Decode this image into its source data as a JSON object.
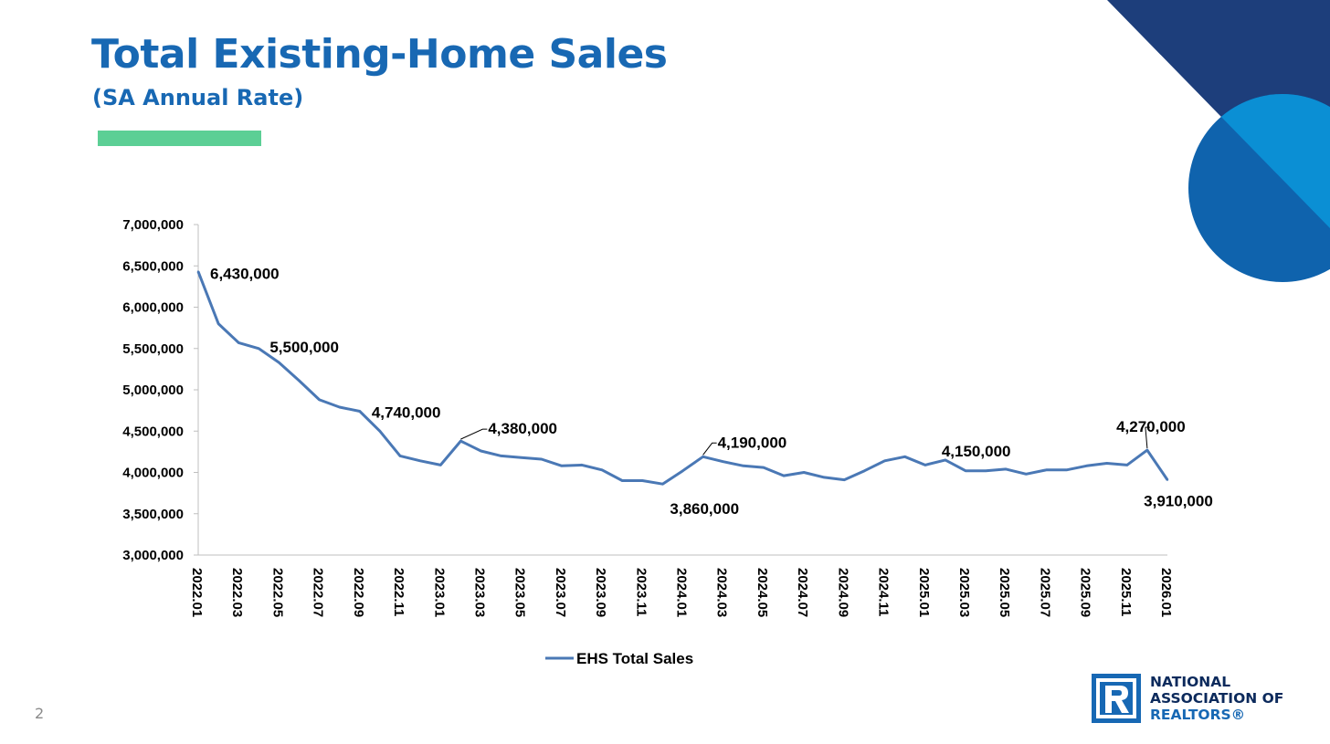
{
  "slide": {
    "title": "Total Existing-Home Sales",
    "subtitle": "(SA Annual Rate)",
    "page_number": "2",
    "accent_color": "#5ccf95",
    "brand_color": "#1868b3"
  },
  "logo": {
    "line1": "NATIONAL",
    "line2": "ASSOCIATION OF",
    "line3": "REALTORS®",
    "icon": "realtor-r-logo-icon"
  },
  "chart_data": {
    "type": "line",
    "title": "Total Existing-Home Sales",
    "subtitle": "(SA Annual Rate)",
    "xlabel": "",
    "ylabel": "",
    "ylim": [
      3000000,
      7000000
    ],
    "y_ticks": [
      3000000,
      3500000,
      4000000,
      4500000,
      5000000,
      5500000,
      6000000,
      6500000,
      7000000
    ],
    "y_tick_labels": [
      "3,000,000",
      "3,500,000",
      "4,000,000",
      "4,500,000",
      "5,000,000",
      "5,500,000",
      "6,000,000",
      "6,500,000",
      "7,000,000"
    ],
    "x": [
      "2022.01",
      "2022.02",
      "2022.03",
      "2022.04",
      "2022.05",
      "2022.06",
      "2022.07",
      "2022.08",
      "2022.09",
      "2022.10",
      "2022.11",
      "2022.12",
      "2023.01",
      "2023.02",
      "2023.03",
      "2023.04",
      "2023.05",
      "2023.06",
      "2023.07",
      "2023.08",
      "2023.09",
      "2023.10",
      "2023.11",
      "2023.12",
      "2024.01",
      "2024.02",
      "2024.03",
      "2024.04",
      "2024.05",
      "2024.06",
      "2024.07",
      "2024.08",
      "2024.09",
      "2024.10",
      "2024.11",
      "2024.12",
      "2025.01",
      "2025.02",
      "2025.03",
      "2025.04",
      "2025.05",
      "2025.06",
      "2025.07",
      "2025.08",
      "2025.09",
      "2025.10",
      "2025.11",
      "2025.12",
      "2026.01"
    ],
    "x_tick_labels": [
      "2022.01",
      "2022.03",
      "2022.05",
      "2022.07",
      "2022.09",
      "2022.11",
      "2023.01",
      "2023.03",
      "2023.05",
      "2023.07",
      "2023.09",
      "2023.11",
      "2024.01",
      "2024.03",
      "2024.05",
      "2024.07",
      "2024.09",
      "2024.11",
      "2025.01",
      "2025.03",
      "2025.05",
      "2025.07",
      "2025.09",
      "2025.11",
      "2026.01"
    ],
    "series": [
      {
        "name": "EHS Total Sales",
        "color": "#4a78b5",
        "values": [
          6430000,
          5800000,
          5570000,
          5500000,
          5330000,
          5110000,
          4880000,
          4790000,
          4740000,
          4500000,
          4200000,
          4140000,
          4090000,
          4380000,
          4260000,
          4200000,
          4180000,
          4160000,
          4080000,
          4090000,
          4030000,
          3900000,
          3900000,
          3860000,
          4020000,
          4190000,
          4130000,
          4080000,
          4060000,
          3960000,
          4000000,
          3940000,
          3910000,
          4020000,
          4140000,
          4190000,
          4090000,
          4150000,
          4020000,
          4020000,
          4040000,
          3980000,
          4030000,
          4030000,
          4080000,
          4110000,
          4090000,
          4270000,
          3910000
        ]
      }
    ],
    "annotations": [
      {
        "index": 0,
        "label": "6,430,000"
      },
      {
        "index": 3,
        "label": "5,500,000"
      },
      {
        "index": 8,
        "label": "4,740,000"
      },
      {
        "index": 13,
        "label": "4,380,000"
      },
      {
        "index": 23,
        "label": "3,860,000"
      },
      {
        "index": 25,
        "label": "4,190,000"
      },
      {
        "index": 37,
        "label": "4,150,000"
      },
      {
        "index": 47,
        "label": "4,270,000"
      },
      {
        "index": 48,
        "label": "3,910,000"
      }
    ],
    "legend": {
      "position": "bottom",
      "label": "EHS Total Sales"
    }
  }
}
